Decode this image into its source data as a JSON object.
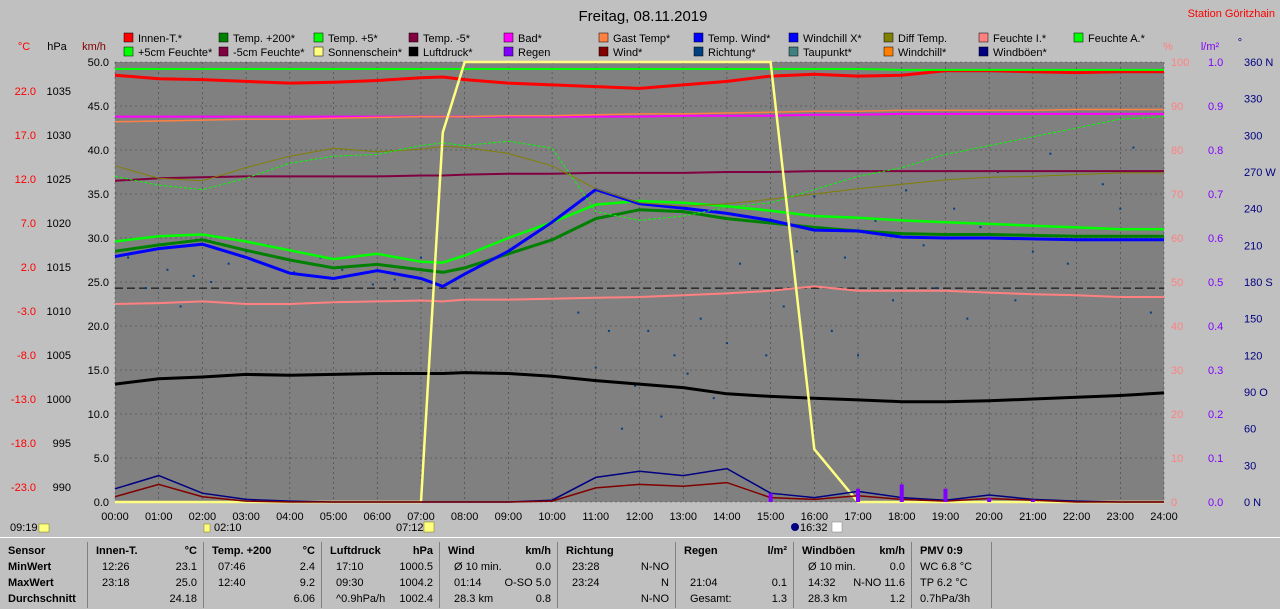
{
  "header": {
    "title": "Freitag, 08.11.2019",
    "station": "Station Göritzhain"
  },
  "legend": [
    [
      {
        "label": "Innen-T.*",
        "color": "#ff0000"
      },
      {
        "label": "+5cm Feuchte*",
        "color": "#00ff00"
      }
    ],
    [
      {
        "label": "Temp. +200*",
        "color": "#008000"
      },
      {
        "label": "-5cm Feuchte*",
        "color": "#800040"
      }
    ],
    [
      {
        "label": "Temp. +5*",
        "color": "#00ff00"
      },
      {
        "label": "Sonnenschein*",
        "color": "#ffff80"
      }
    ],
    [
      {
        "label": "Temp. -5*",
        "color": "#800040"
      },
      {
        "label": "Luftdruck*",
        "color": "#000000"
      }
    ],
    [
      {
        "label": "Bad*",
        "color": "#ff00ff"
      },
      {
        "label": "Regen",
        "color": "#8000ff"
      }
    ],
    [
      {
        "label": "Gast Temp*",
        "color": "#ff8040"
      },
      {
        "label": "Wind*",
        "color": "#800000"
      }
    ],
    [
      {
        "label": "Temp. Wind*",
        "color": "#0000ff"
      },
      {
        "label": "Richtung*",
        "color": "#004080"
      }
    ],
    [
      {
        "label": "Windchill X*",
        "color": "#0000ff"
      },
      {
        "label": "Taupunkt*",
        "color": "#408080"
      }
    ],
    [
      {
        "label": "Diff Temp.",
        "color": "#808000"
      },
      {
        "label": "Windchill*",
        "color": "#ff8000"
      }
    ],
    [
      {
        "label": "Feuchte I.*",
        "color": "#ff8080"
      },
      {
        "label": "Windböen*",
        "color": "#000080"
      }
    ],
    [
      {
        "label": "Feuchte A.*",
        "color": "#00ff00"
      }
    ]
  ],
  "axes": {
    "left_units": [
      "°C",
      "hPa",
      "km/h"
    ],
    "right_units": [
      "%",
      "l/m²",
      "°"
    ],
    "temp_ticks": [
      "22.0",
      "17.0",
      "12.0",
      "7.0",
      "2.0",
      "-3.0",
      "-8.0",
      "-13.0",
      "-18.0",
      "-23.0"
    ],
    "hpa_ticks": [
      "1035",
      "1030",
      "1025",
      "1020",
      "1015",
      "1010",
      "1005",
      "1000",
      "995",
      "990"
    ],
    "kmh_ticks": [
      "50.0",
      "45.0",
      "40.0",
      "35.0",
      "30.0",
      "25.0",
      "20.0",
      "15.0",
      "10.0",
      "5.0",
      "0.0"
    ],
    "pct_ticks": [
      "100",
      "90",
      "80",
      "70",
      "60",
      "50",
      "40",
      "30",
      "20",
      "10",
      "0"
    ],
    "rain_ticks": [
      "1.0",
      "0.9",
      "0.8",
      "0.7",
      "0.6",
      "0.5",
      "0.4",
      "0.3",
      "0.2",
      "0.1",
      "0.0"
    ],
    "dir_ticks": [
      "360 N",
      "330",
      "300",
      "270 W",
      "240",
      "210",
      "180 S",
      "150",
      "120",
      "90 O",
      "60",
      "30",
      "0 N"
    ],
    "time_ticks": [
      "00:00",
      "01:00",
      "02:00",
      "03:00",
      "04:00",
      "05:00",
      "06:00",
      "07:00",
      "08:00",
      "09:00",
      "10:00",
      "11:00",
      "12:00",
      "13:00",
      "14:00",
      "15:00",
      "16:00",
      "17:00",
      "18:00",
      "19:00",
      "20:00",
      "21:00",
      "22:00",
      "23:00",
      "24:00"
    ]
  },
  "sun_markers": {
    "moonrise": "09:19",
    "moonset": "02:10",
    "sunrise": "07:12",
    "sunset": "16:32"
  },
  "chart_data": {
    "type": "line",
    "x_unit": "hours",
    "x": [
      0,
      1,
      2,
      3,
      4,
      5,
      6,
      7,
      7.5,
      8,
      9,
      10,
      11,
      12,
      13,
      14,
      15,
      16,
      17,
      18,
      19,
      20,
      21,
      22,
      23,
      24
    ],
    "series": [
      {
        "name": "Innen-T.*",
        "axis": "kmh",
        "values": [
          48.5,
          48.1,
          48,
          47.8,
          47.6,
          47.7,
          47.9,
          48.2,
          48.3,
          48.0,
          47.6,
          47.4,
          47.2,
          47.0,
          47.4,
          47.8,
          48.4,
          48.6,
          48.4,
          48.5,
          49.0,
          49.0,
          48.9,
          48.8,
          48.9,
          48.9
        ]
      },
      {
        "name": "Feuchte A.*",
        "axis": "kmh",
        "values": [
          49.2,
          49.2,
          49.2,
          49.2,
          49.2,
          49.2,
          49.2,
          49.2,
          49.2,
          49.2,
          49.2,
          49.2,
          49.2,
          49.2,
          49.2,
          49.2,
          49.2,
          49.2,
          49.2,
          49.1,
          49.1,
          49.1,
          49.1,
          49.1,
          49.1,
          49.1
        ]
      },
      {
        "name": "Bad*",
        "axis": "kmh",
        "values": [
          43.8,
          43.8,
          43.8,
          43.8,
          43.8,
          43.8,
          43.8,
          43.8,
          43.8,
          43.8,
          43.8,
          43.8,
          43.8,
          43.8,
          43.9,
          43.9,
          43.9,
          44.0,
          44.0,
          44.1,
          44.1,
          44.1,
          44.1,
          44.1,
          44.1,
          44.1
        ]
      },
      {
        "name": "Gast Temp*",
        "axis": "kmh",
        "values": [
          43.2,
          43.3,
          43.4,
          43.5,
          43.5,
          43.6,
          43.7,
          43.8,
          43.8,
          43.8,
          43.9,
          43.9,
          44.0,
          44.1,
          44.1,
          44.2,
          44.3,
          44.4,
          44.4,
          44.5,
          44.5,
          44.5,
          44.5,
          44.6,
          44.6,
          44.6
        ]
      },
      {
        "name": "Temp. -5*",
        "axis": "kmh",
        "values": [
          36.5,
          36.8,
          36.9,
          37.0,
          37.0,
          37.0,
          37.0,
          37.1,
          37.1,
          37.2,
          37.3,
          37.3,
          37.4,
          37.4,
          37.4,
          37.5,
          37.5,
          37.6,
          37.6,
          37.6,
          37.6,
          37.6,
          37.6,
          37.6,
          37.6,
          37.6
        ]
      },
      {
        "name": "Temp. +5*",
        "axis": "kmh",
        "values": [
          29.6,
          30.2,
          30.4,
          29.6,
          28.6,
          27.6,
          28.2,
          27.3,
          27.2,
          28.0,
          30.0,
          31.8,
          33.8,
          34.2,
          34.0,
          33.6,
          33.1,
          32.5,
          32.3,
          32.0,
          31.8,
          31.6,
          31.4,
          31.2,
          31.0,
          31.0
        ]
      },
      {
        "name": "Temp. +200*",
        "axis": "kmh",
        "values": [
          28.5,
          29.2,
          29.8,
          28.6,
          27.5,
          26.6,
          27.0,
          26.4,
          26.1,
          26.6,
          28.2,
          29.8,
          32.2,
          33.2,
          33.0,
          32.2,
          31.7,
          31.2,
          30.8,
          30.5,
          30.4,
          30.4,
          30.3,
          30.2,
          30.2,
          30.2
        ]
      },
      {
        "name": "Temp. Wind*",
        "axis": "kmh",
        "values": [
          27.9,
          28.8,
          29.3,
          27.8,
          26.0,
          25.4,
          26.3,
          25.4,
          24.5,
          25.9,
          28.5,
          31.8,
          35.5,
          33.9,
          33.4,
          32.8,
          32.0,
          30.9,
          30.8,
          30.1,
          30.0,
          30.0,
          29.9,
          29.8,
          29.8,
          29.8
        ]
      },
      {
        "name": "Diff Temp.",
        "axis": "kmh",
        "values": [
          38.2,
          36.8,
          36.5,
          38.0,
          39.3,
          40.2,
          39.8,
          40.1,
          40.4,
          40.3,
          39.6,
          38.2,
          35.6,
          34.0,
          33.6,
          33.9,
          34.4,
          35.0,
          35.6,
          36.1,
          36.6,
          36.9,
          37.0,
          37.2,
          37.4,
          37.4
        ]
      },
      {
        "name": "+5cm Feuchte*",
        "axis": "kmh",
        "values": [
          37.0,
          36.0,
          35.5,
          36.8,
          38.5,
          39.3,
          39.5,
          40.5,
          40.8,
          40.5,
          41.0,
          40.2,
          33.0,
          32.0,
          32.5,
          33.5,
          34.0,
          35.5,
          37.0,
          38.0,
          39.5,
          40.5,
          41.5,
          42.5,
          43.5,
          43.8
        ]
      },
      {
        "name": "Luftdruck*",
        "axis": "kmh",
        "values": [
          13.4,
          14.0,
          14.2,
          14.5,
          14.4,
          14.5,
          14.6,
          14.6,
          14.6,
          14.7,
          14.6,
          14.3,
          13.8,
          13.4,
          13.0,
          12.3,
          12.0,
          11.8,
          11.6,
          11.4,
          11.4,
          11.5,
          11.7,
          11.9,
          12.1,
          12.4
        ]
      },
      {
        "name": "Feuchte I.*",
        "axis": "kmh",
        "values": [
          22.5,
          22.6,
          22.8,
          22.5,
          22.5,
          22.7,
          22.8,
          22.9,
          22.8,
          23.0,
          23.0,
          23.1,
          23.2,
          23.3,
          23.5,
          23.7,
          24.0,
          24.5,
          24.0,
          24.0,
          24.0,
          23.8,
          23.6,
          23.5,
          23.3,
          23.3
        ]
      },
      {
        "name": "Sonnenschein*",
        "axis": "pct",
        "values": [
          0,
          0,
          0,
          0,
          0,
          0,
          0,
          0,
          84,
          100,
          100,
          100,
          100,
          100,
          100,
          100,
          100,
          12,
          0,
          0,
          0,
          0,
          0,
          0,
          0,
          0
        ]
      },
      {
        "name": "Windböen*",
        "axis": "kmh",
        "values": [
          1.5,
          3.0,
          1.0,
          0.3,
          0.1,
          0,
          0,
          0,
          0,
          0,
          0,
          0.2,
          2.8,
          3.5,
          3.0,
          3.8,
          1.0,
          0.5,
          1.2,
          0.5,
          0.2,
          0.8,
          0.3,
          0.1,
          0,
          0
        ]
      },
      {
        "name": "Wind*",
        "axis": "kmh",
        "values": [
          0.6,
          2.0,
          0.6,
          0.1,
          0,
          0,
          0,
          0,
          0,
          0,
          0,
          0.1,
          1.6,
          2.0,
          1.8,
          2.2,
          0.5,
          0.3,
          0.7,
          0.3,
          0.1,
          0.4,
          0.2,
          0,
          0,
          0
        ]
      },
      {
        "name": "Regen",
        "axis": "rain",
        "values": [
          0,
          0,
          0,
          0,
          0,
          0,
          0,
          0,
          0,
          0,
          0,
          0,
          0,
          0,
          0,
          0,
          0.02,
          0,
          0.03,
          0.04,
          0.03,
          0.01,
          0.005,
          0,
          0,
          0
        ]
      }
    ],
    "reference_line": {
      "axis": "kmh",
      "value": 24.3
    },
    "direction_scatter": {
      "axis": "dir",
      "x": [
        0.3,
        0.7,
        1.2,
        1.5,
        1.8,
        2.2,
        2.6,
        3.0,
        3.5,
        4.1,
        4.7,
        5.2,
        5.9,
        6.4,
        7.0,
        10.6,
        11.0,
        11.3,
        11.6,
        11.9,
        12.2,
        12.5,
        12.8,
        13.1,
        13.4,
        13.7,
        14.0,
        14.3,
        14.6,
        14.9,
        15.3,
        15.6,
        16.0,
        16.4,
        16.7,
        17.0,
        17.4,
        17.8,
        18.1,
        18.5,
        18.8,
        19.2,
        19.5,
        19.8,
        20.2,
        20.6,
        21.0,
        21.4,
        21.8,
        22.2,
        22.6,
        23.0,
        23.3,
        23.7
      ],
      "values": [
        200,
        175,
        190,
        160,
        185,
        180,
        195,
        205,
        210,
        188,
        200,
        190,
        178,
        182,
        200,
        155,
        110,
        140,
        60,
        95,
        140,
        70,
        120,
        105,
        150,
        85,
        130,
        195,
        230,
        120,
        160,
        205,
        250,
        140,
        200,
        120,
        230,
        165,
        255,
        210,
        175,
        240,
        150,
        225,
        270,
        165,
        205,
        285,
        195,
        215,
        260,
        240,
        290,
        155
      ]
    }
  },
  "stats": [
    {
      "header": [
        "Sensor"
      ],
      "rows": [
        [
          "MinWert"
        ],
        [
          "MaxWert"
        ],
        [
          "Durchschnitt"
        ]
      ]
    },
    {
      "header": [
        "Innen-T.",
        "°C"
      ],
      "rows": [
        [
          "12:26",
          "23.1"
        ],
        [
          "23:18",
          "25.0"
        ],
        [
          "",
          "24.18"
        ]
      ]
    },
    {
      "header": [
        "Temp. +200",
        "°C"
      ],
      "rows": [
        [
          "07:46",
          "2.4"
        ],
        [
          "12:40",
          "9.2"
        ],
        [
          "",
          "6.06"
        ]
      ]
    },
    {
      "header": [
        "Luftdruck",
        "hPa"
      ],
      "rows": [
        [
          "17:10",
          "1000.5"
        ],
        [
          "09:30",
          "1004.2"
        ],
        [
          "^0.9hPa/h",
          "1002.4"
        ]
      ]
    },
    {
      "header": [
        "Wind",
        "km/h"
      ],
      "rows": [
        [
          "Ø 10 min.",
          "0.0"
        ],
        [
          "01:14",
          "O-SO 5.0"
        ],
        [
          "28.3 km",
          "0.8"
        ]
      ]
    },
    {
      "header": [
        "Richtung",
        ""
      ],
      "rows": [
        [
          "23:28",
          "N-NO"
        ],
        [
          "23:24",
          "N"
        ],
        [
          "",
          "N-NO"
        ]
      ]
    },
    {
      "header": [
        "Regen",
        "l/m²"
      ],
      "rows": [
        [
          "",
          ""
        ],
        [
          "21:04",
          "0.1"
        ],
        [
          "Gesamt:",
          "1.3"
        ]
      ]
    },
    {
      "header": [
        "Windböen",
        "km/h"
      ],
      "rows": [
        [
          "Ø 10 min.",
          "0.0"
        ],
        [
          "14:32",
          "N-NO 11.6"
        ],
        [
          "28.3 km",
          "1.2"
        ]
      ]
    },
    {
      "header": [
        "PMV 0:9"
      ],
      "rows": [
        [
          "WC 6.8 °C"
        ],
        [
          "TP 6.2 °C"
        ],
        [
          "0.7hPa/3h"
        ]
      ]
    }
  ]
}
